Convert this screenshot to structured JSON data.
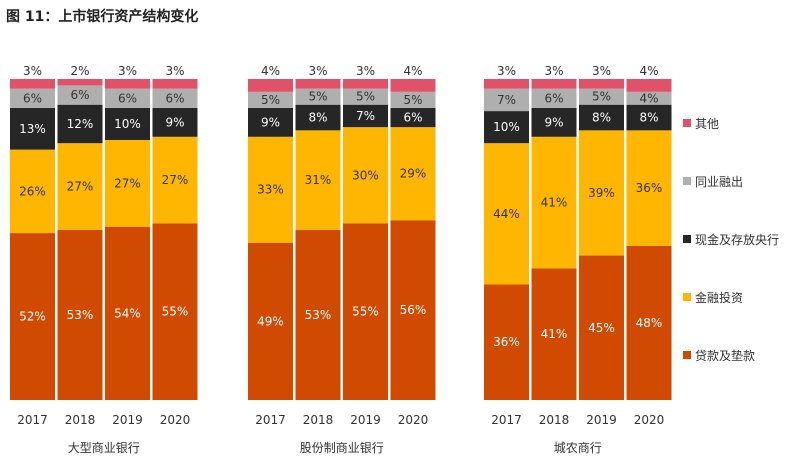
{
  "title": "图 11：上市银行资产结构变化",
  "chart_data": {
    "type": "bar",
    "stacked": true,
    "title": "图 11：上市银行资产结构变化",
    "categories": [
      "2017",
      "2018",
      "2019",
      "2020"
    ],
    "legend_position": "right",
    "grid": false,
    "unit": "%",
    "series": [
      {
        "name": "贷款及垫款",
        "color": "#D04A02"
      },
      {
        "name": "金融投资",
        "color": "#FFB600"
      },
      {
        "name": "现金及存放央行",
        "color": "#262626"
      },
      {
        "name": "同业融出",
        "color": "#AFAFAF"
      },
      {
        "name": "其他",
        "color": "#E0526A"
      }
    ],
    "legend_order": [
      "其他",
      "同业融出",
      "现金及存放央行",
      "金融投资",
      "贷款及垫款"
    ],
    "groups": [
      {
        "name": "大型商业银行",
        "values": [
          [
            52,
            26,
            13,
            6,
            3
          ],
          [
            53,
            27,
            12,
            6,
            2
          ],
          [
            54,
            27,
            10,
            6,
            3
          ],
          [
            55,
            27,
            9,
            6,
            3
          ]
        ]
      },
      {
        "name": "股份制商业银行",
        "values": [
          [
            49,
            33,
            9,
            5,
            4
          ],
          [
            53,
            31,
            8,
            5,
            3
          ],
          [
            55,
            30,
            7,
            5,
            3
          ],
          [
            56,
            29,
            6,
            5,
            4
          ]
        ]
      },
      {
        "name": "城农商行",
        "values": [
          [
            36,
            44,
            10,
            7,
            3
          ],
          [
            41,
            41,
            9,
            6,
            3
          ],
          [
            45,
            39,
            8,
            5,
            3
          ],
          [
            48,
            36,
            8,
            4,
            4
          ]
        ]
      }
    ]
  }
}
